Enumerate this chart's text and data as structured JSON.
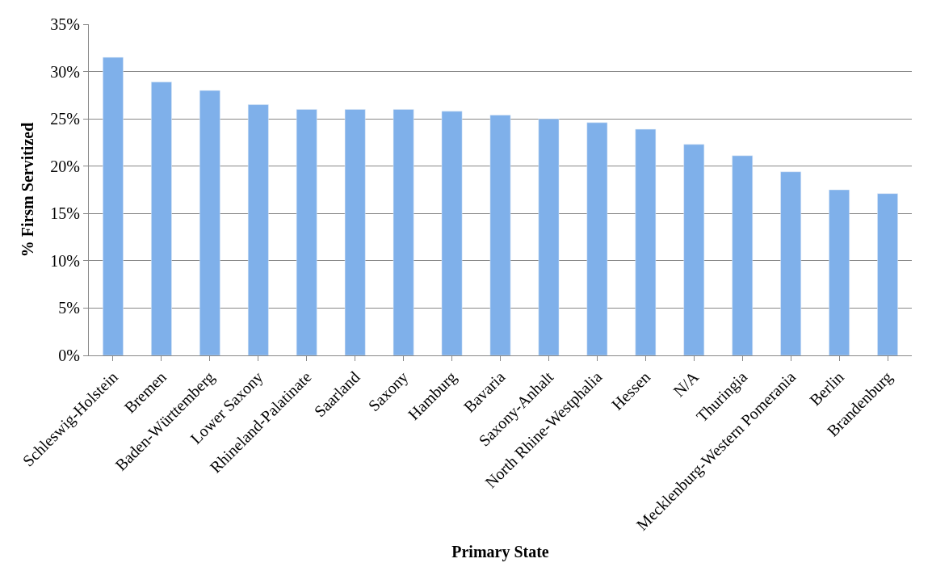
{
  "chart_data": {
    "type": "bar",
    "xlabel": "Primary State",
    "ylabel": "% Firsm Servitized",
    "categories": [
      "Schleswig-Holstein",
      "Bremen",
      "Baden-Württemberg",
      "Lower Saxony",
      "Rhineland-Palatinate",
      "Saarland",
      "Saxony",
      "Hamburg",
      "Bavaria",
      "Saxony-Anhalt",
      "North Rhine-Westphalia",
      "Hessen",
      "N/A",
      "Thuringia",
      "Mecklenburg-Western Pomerania",
      "Berlin",
      "Brandenburg"
    ],
    "values": [
      31.5,
      28.9,
      28.0,
      26.5,
      26.0,
      26.0,
      26.0,
      25.8,
      25.4,
      25.0,
      24.6,
      23.9,
      22.3,
      21.1,
      19.4,
      17.5,
      17.1
    ],
    "color": "#7fb0ea",
    "ylim": [
      0,
      35
    ],
    "yticks": [
      {
        "value": 0,
        "label": "0%"
      },
      {
        "value": 5,
        "label": "5%"
      },
      {
        "value": 10,
        "label": "10%"
      },
      {
        "value": 15,
        "label": "15%"
      },
      {
        "value": 20,
        "label": "20%"
      },
      {
        "value": 25,
        "label": "25%"
      },
      {
        "value": 30,
        "label": "30%"
      },
      {
        "value": 35,
        "label": "35%"
      }
    ],
    "grid": "y"
  }
}
